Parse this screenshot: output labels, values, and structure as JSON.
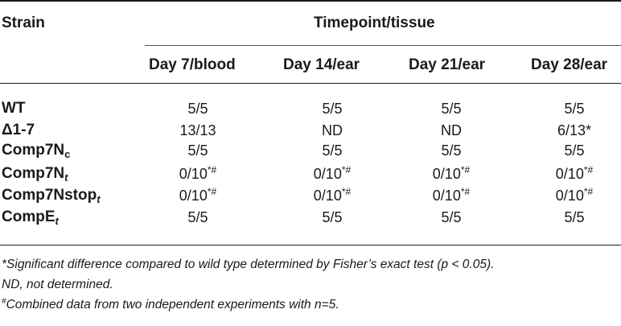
{
  "header": {
    "strain": "Strain",
    "group": "Timepoint/tissue",
    "columns": [
      "Day 7/blood",
      "Day 14/ear",
      "Day 21/ear",
      "Day 28/ear"
    ]
  },
  "rows": [
    {
      "base": "WT",
      "sub": "",
      "sub_italic": false,
      "cells": [
        "5/5",
        "5/5",
        "5/5",
        "5/5"
      ],
      "sups": [
        "",
        "",
        "",
        ""
      ]
    },
    {
      "base": "Δ1-7",
      "sub": "",
      "sub_italic": false,
      "cells": [
        "13/13",
        "ND",
        "ND",
        "6/13*"
      ],
      "sups": [
        "",
        "",
        "",
        ""
      ]
    },
    {
      "base": "Comp7N",
      "sub": "c",
      "sub_italic": false,
      "cells": [
        "5/5",
        "5/5",
        "5/5",
        "5/5"
      ],
      "sups": [
        "",
        "",
        "",
        ""
      ]
    },
    {
      "base": "Comp7N",
      "sub": "t",
      "sub_italic": true,
      "cells": [
        "0/10",
        "0/10",
        "0/10",
        "0/10"
      ],
      "sups": [
        "*#",
        "*#",
        "*#",
        "*#"
      ]
    },
    {
      "base": "Comp7Nstop",
      "sub": "t",
      "sub_italic": true,
      "cells": [
        "0/10",
        "0/10",
        "0/10",
        "0/10"
      ],
      "sups": [
        "*#",
        "*#",
        "*#",
        "*#"
      ]
    },
    {
      "base": "CompE",
      "sub": "t",
      "sub_italic": true,
      "cells": [
        "5/5",
        "5/5",
        "5/5",
        "5/5"
      ],
      "sups": [
        "",
        "",
        "",
        ""
      ]
    }
  ],
  "footnotes": {
    "line1": "*Significant difference compared to wild type determined by Fisher’s exact test (p < 0.05).",
    "line2": "ND, not determined.",
    "line3_sup": "#",
    "line3": "Combined data from two independent experiments with n=5."
  }
}
